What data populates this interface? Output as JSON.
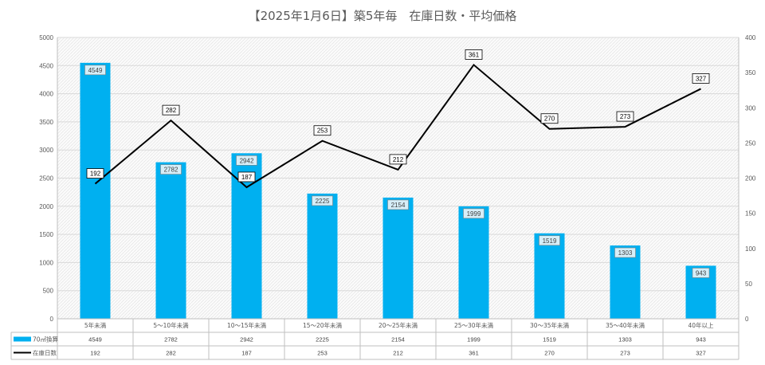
{
  "chart_data": {
    "type": "bar",
    "title": "【2025年1月6日】築5年毎　在庫日数・平均価格",
    "categories": [
      "5年未満",
      "5～10年未満",
      "10～15年未満",
      "15～20年未満",
      "20～25年未満",
      "25～30年未満",
      "30～35年未満",
      "35～40年未満",
      "40年以上"
    ],
    "series": [
      {
        "name": "70㎡換算",
        "kind": "bar",
        "axis": "left",
        "color": "#00B0F0",
        "values": [
          4549,
          2782,
          2942,
          2225,
          2154,
          1999,
          1519,
          1303,
          943
        ]
      },
      {
        "name": "在庫日数",
        "kind": "line",
        "axis": "right",
        "color": "#000000",
        "values": [
          192,
          282,
          187,
          253,
          212,
          361,
          270,
          273,
          327
        ]
      }
    ],
    "y_left": {
      "min": 0,
      "max": 5000,
      "step": 500
    },
    "y_right": {
      "min": 0,
      "max": 400,
      "step": 50
    },
    "grid": true,
    "legend": "data table below chart"
  }
}
